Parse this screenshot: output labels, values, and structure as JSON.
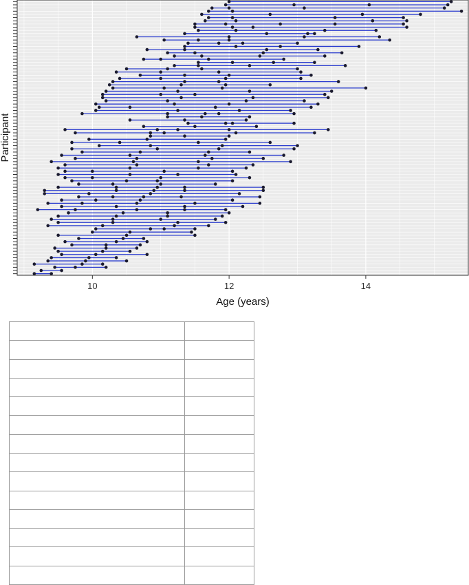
{
  "chart_data": {
    "type": "dumbbell",
    "xlabel": "Age (years)",
    "ylabel": "Participant",
    "xlim": [
      8.9,
      15.5
    ],
    "xticks": [
      10,
      12,
      14
    ],
    "grid": true,
    "line_color": "#2b3ccf",
    "point_color": "#1a1a2e",
    "panel_background": "#ebebeb",
    "participants": [
      {
        "ages": [
          12.0,
          15.25
        ]
      },
      {
        "ages": [
          11.95,
          12.95,
          14.05,
          15.2
        ]
      },
      {
        "ages": [
          11.75,
          12.0,
          13.1,
          15.15
        ]
      },
      {
        "ages": [
          11.7,
          12.05,
          15.4
        ]
      },
      {
        "ages": [
          11.6,
          12.6,
          13.95,
          14.8
        ]
      },
      {
        "ages": [
          11.7,
          12.05,
          13.55,
          14.55
        ]
      },
      {
        "ages": [
          11.65,
          12.1,
          14.1,
          14.6
        ]
      },
      {
        "ages": [
          11.5,
          11.95,
          12.75,
          13.55,
          14.55
        ]
      },
      {
        "ages": [
          11.5,
          12.05,
          12.35,
          14.6
        ]
      },
      {
        "ages": [
          11.55,
          12.1,
          13.4,
          14.15
        ]
      },
      {
        "ages": [
          11.35,
          12.55,
          13.15,
          13.25
        ]
      },
      {
        "ages": [
          10.65,
          12.0,
          13.1,
          14.2
        ]
      },
      {
        "ages": [
          11.05,
          11.55,
          12.0,
          14.35
        ]
      },
      {
        "ages": [
          11.4,
          11.85,
          12.2,
          13.0
        ]
      },
      {
        "ages": [
          11.35,
          12.1,
          12.75,
          13.9
        ]
      },
      {
        "ages": [
          10.8,
          11.35,
          12.55,
          13.3
        ]
      },
      {
        "ages": [
          11.1,
          11.5,
          12.5,
          13.65
        ]
      },
      {
        "ages": [
          11.2,
          11.6,
          12.45,
          13.4
        ]
      },
      {
        "ages": [
          10.75,
          11.0,
          11.7,
          12.8
        ]
      },
      {
        "ages": [
          11.55,
          12.05,
          12.65,
          13.25
        ]
      },
      {
        "ages": [
          11.2,
          11.55,
          12.3,
          13.7
        ]
      },
      {
        "ages": [
          10.5,
          11.1,
          11.6,
          13.0
        ]
      },
      {
        "ages": [
          10.35,
          11.0,
          11.85,
          13.05
        ]
      },
      {
        "ages": [
          10.7,
          11.35,
          12.0,
          13.2
        ]
      },
      {
        "ages": [
          10.4,
          11.0,
          11.95,
          13.05
        ]
      },
      {
        "ages": [
          10.3,
          11.35,
          11.85,
          13.6
        ]
      },
      {
        "ages": [
          10.25,
          11.3,
          11.95,
          12.6
        ]
      },
      {
        "ages": [
          10.3,
          11.05,
          11.9,
          14.0
        ]
      },
      {
        "ages": [
          10.2,
          11.25,
          12.3,
          13.5
        ]
      },
      {
        "ages": [
          10.15,
          11.0,
          11.5,
          13.4
        ]
      },
      {
        "ages": [
          10.15,
          11.3,
          12.35,
          13.45
        ]
      },
      {
        "ages": [
          10.2,
          11.1,
          12.25,
          13.1
        ]
      },
      {
        "ages": [
          10.05,
          11.2,
          12.0,
          13.3
        ]
      },
      {
        "ages": [
          10.1,
          10.55,
          11.8,
          13.2
        ]
      },
      {
        "ages": [
          10.05,
          11.25,
          12.15,
          12.9
        ]
      },
      {
        "ages": [
          9.85,
          11.1,
          11.65,
          11.85,
          12.95
        ]
      },
      {
        "ages": [
          11.1,
          11.6,
          12.3
        ]
      },
      {
        "ages": [
          10.55,
          11.35,
          12.25
        ]
      },
      {
        "ages": [
          11.4,
          11.95,
          12.05,
          12.95
        ]
      },
      {
        "ages": [
          10.75,
          11.5,
          12.4
        ]
      },
      {
        "ages": [
          9.6,
          10.95,
          11.25,
          12.0,
          13.45
        ]
      },
      {
        "ages": [
          9.75,
          10.85,
          11.05,
          12.1,
          13.25
        ]
      },
      {
        "ages": [
          10.85,
          11.35,
          12.0
        ]
      },
      {
        "ages": [
          9.95,
          10.8,
          11.95
        ]
      },
      {
        "ages": [
          9.7,
          10.4,
          11.55,
          12.6
        ]
      },
      {
        "ages": [
          10.1,
          10.85,
          11.9,
          13.0
        ]
      },
      {
        "ages": [
          9.7,
          10.95,
          11.85,
          12.95
        ]
      },
      {
        "ages": [
          9.85,
          10.7,
          11.7,
          12.3
        ]
      },
      {
        "ages": [
          9.55,
          10.55,
          11.65,
          12.8
        ]
      },
      {
        "ages": [
          9.75,
          10.65,
          11.75,
          12.5
        ]
      },
      {
        "ages": [
          9.4,
          10.6,
          11.55,
          12.9
        ]
      },
      {
        "ages": [
          9.6,
          10.65,
          11.7,
          12.35
        ]
      },
      {
        "ages": [
          9.5,
          10.55,
          11.55,
          12.25
        ]
      },
      {
        "ages": [
          9.6,
          10.0,
          11.05,
          12.05
        ]
      },
      {
        "ages": [
          9.5,
          10.55,
          11.25,
          12.1
        ]
      },
      {
        "ages": [
          9.6,
          10.0,
          11.0,
          12.3
        ]
      },
      {
        "ages": [
          9.7,
          10.5,
          10.95,
          12.05
        ]
      },
      {
        "ages": [
          9.8,
          10.3,
          11.0,
          11.8
        ]
      },
      {
        "ages": [
          9.5,
          10.35,
          10.95,
          11.35,
          12.5
        ]
      },
      {
        "ages": [
          9.3,
          10.35,
          10.9,
          11.35,
          12.5
        ]
      },
      {
        "ages": [
          9.3,
          9.95,
          10.85,
          12.15
        ]
      },
      {
        "ages": [
          9.8,
          10.3,
          10.75,
          11.3,
          12.45
        ]
      },
      {
        "ages": [
          9.55,
          10.05,
          10.7,
          12.05
        ]
      },
      {
        "ages": [
          9.35,
          9.85,
          10.65,
          11.5,
          12.45
        ]
      },
      {
        "ages": [
          9.55,
          10.35,
          11.35,
          12.2
        ]
      },
      {
        "ages": [
          9.2,
          9.75,
          10.65,
          11.35,
          11.95
        ]
      },
      {
        "ages": [
          9.65,
          10.45,
          11.1,
          12.0
        ]
      },
      {
        "ages": [
          9.5,
          10.35,
          11.1,
          11.9
        ]
      },
      {
        "ages": [
          9.4,
          10.3,
          11.0,
          11.8
        ]
      },
      {
        "ages": [
          9.5,
          10.3,
          11.25,
          11.95
        ]
      },
      {
        "ages": [
          9.35,
          10.15,
          11.2,
          11.7
        ]
      },
      {
        "ages": [
          10.05,
          10.85,
          11.05,
          11.5
        ]
      },
      {
        "ages": [
          10.0,
          10.55,
          11.45
        ]
      },
      {
        "ages": [
          9.5,
          10.5,
          11.5
        ]
      },
      {
        "ages": [
          9.8,
          10.45,
          10.75
        ]
      },
      {
        "ages": [
          9.6,
          10.35,
          10.8
        ]
      },
      {
        "ages": [
          9.7,
          10.2,
          10.7
        ]
      },
      {
        "ages": [
          9.45,
          10.2,
          10.65
        ]
      },
      {
        "ages": [
          9.5,
          10.15,
          10.55
        ]
      },
      {
        "ages": [
          9.55,
          10.05,
          10.8
        ]
      },
      {
        "ages": [
          9.4,
          9.95,
          10.35
        ]
      },
      {
        "ages": [
          9.35,
          9.9,
          10.5
        ]
      },
      {
        "ages": [
          9.15,
          9.85,
          10.15
        ]
      },
      {
        "ages": [
          9.45,
          9.75,
          10.2
        ]
      },
      {
        "ages": [
          9.25,
          9.55
        ]
      },
      {
        "ages": [
          9.15,
          9.4
        ]
      }
    ]
  },
  "table": {
    "rows": [
      [
        "",
        ""
      ],
      [
        "",
        ""
      ],
      [
        "",
        ""
      ],
      [
        "",
        ""
      ],
      [
        "",
        ""
      ],
      [
        "",
        ""
      ],
      [
        "",
        ""
      ],
      [
        "",
        ""
      ],
      [
        "",
        ""
      ],
      [
        "",
        ""
      ],
      [
        "",
        ""
      ],
      [
        "",
        ""
      ],
      [
        "",
        ""
      ],
      [
        "",
        ""
      ]
    ]
  }
}
